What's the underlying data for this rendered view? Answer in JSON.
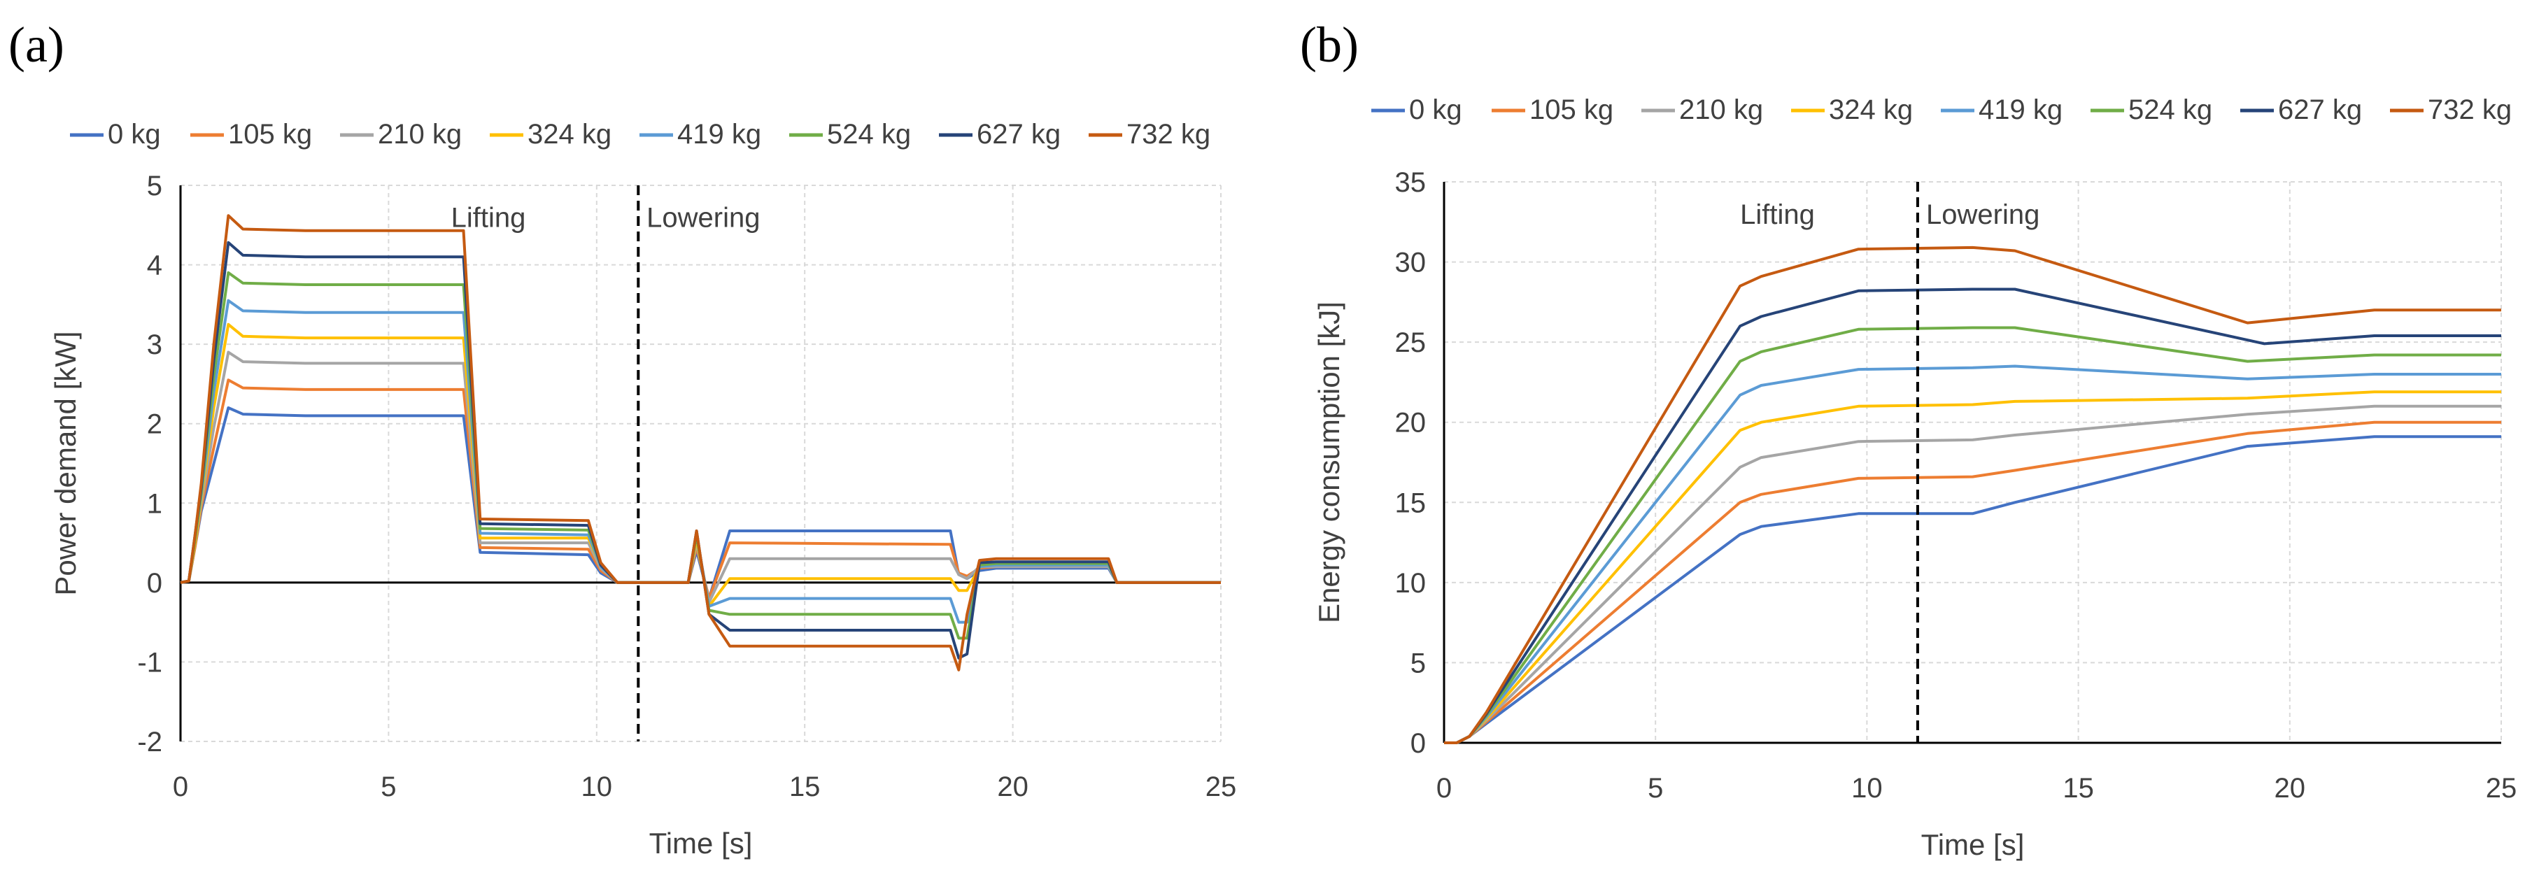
{
  "figure": {
    "panels": [
      {
        "label": "(a)"
      },
      {
        "label": "(b)"
      }
    ]
  },
  "chart_data": [
    {
      "type": "line",
      "title": "",
      "xlabel": "Time [s]",
      "ylabel": "Power demand [kW]",
      "xlim": [
        0,
        25
      ],
      "ylim": [
        -2,
        5
      ],
      "xticks": [
        0,
        5,
        10,
        15,
        20,
        25
      ],
      "yticks": [
        -2,
        -1,
        0,
        1,
        2,
        3,
        4,
        5
      ],
      "grid": true,
      "legend": "top",
      "divider": {
        "x": 11,
        "style": "dashed"
      },
      "annotations": [
        {
          "text": "Lifting",
          "x": 6.5,
          "y": 4.6
        },
        {
          "text": "Lowering",
          "x": 11.2,
          "y": 4.6
        }
      ],
      "colors": [
        "#4472C4",
        "#ED7D31",
        "#A5A5A5",
        "#FFC000",
        "#5B9BD5",
        "#70AD47",
        "#264478",
        "#C55A11"
      ],
      "series": [
        {
          "name": "0 kg",
          "x": [
            0,
            0.2,
            0.35,
            0.5,
            0.8,
            1.15,
            1.5,
            3,
            5,
            6.8,
            7.2,
            9.8,
            10.1,
            10.5,
            11,
            12.2,
            12.4,
            12.7,
            13.2,
            18.5,
            18.7,
            18.9,
            19.2,
            19.6,
            21.5,
            22.3,
            22.5,
            25
          ],
          "y": [
            0,
            0.02,
            0.45,
            0.9,
            1.5,
            2.2,
            2.12,
            2.1,
            2.1,
            2.1,
            0.38,
            0.35,
            0.12,
            0,
            0,
            0,
            0.4,
            -0.2,
            0.65,
            0.65,
            0.1,
            0.05,
            0.15,
            0.18,
            0.18,
            0.18,
            0,
            0
          ]
        },
        {
          "name": "105 kg",
          "x": [
            0,
            0.2,
            0.35,
            0.5,
            0.8,
            1.15,
            1.5,
            3,
            5,
            6.8,
            7.2,
            9.8,
            10.1,
            10.5,
            11,
            12.2,
            12.4,
            12.7,
            13.2,
            18.5,
            18.7,
            18.9,
            19.2,
            19.6,
            21.5,
            22.3,
            22.5,
            25
          ],
          "y": [
            0,
            0.02,
            0.45,
            0.95,
            1.7,
            2.55,
            2.45,
            2.43,
            2.43,
            2.43,
            0.44,
            0.42,
            0.15,
            0,
            0,
            0,
            0.45,
            -0.2,
            0.5,
            0.48,
            0.12,
            0.08,
            0.18,
            0.2,
            0.2,
            0.2,
            0,
            0
          ]
        },
        {
          "name": "210 kg",
          "x": [
            0,
            0.2,
            0.35,
            0.5,
            0.8,
            1.15,
            1.5,
            3,
            5,
            6.8,
            7.2,
            9.8,
            10.1,
            10.5,
            11,
            12.2,
            12.4,
            12.7,
            13.2,
            18.5,
            18.7,
            18.9,
            19.2,
            19.6,
            21.5,
            22.3,
            22.5,
            25
          ],
          "y": [
            0,
            0.02,
            0.5,
            1.0,
            1.95,
            2.9,
            2.78,
            2.76,
            2.76,
            2.76,
            0.5,
            0.5,
            0.18,
            0,
            0,
            0,
            0.5,
            -0.25,
            0.3,
            0.3,
            0.1,
            0.05,
            0.2,
            0.2,
            0.2,
            0.2,
            0,
            0
          ]
        },
        {
          "name": "324 kg",
          "x": [
            0,
            0.2,
            0.35,
            0.5,
            0.8,
            1.15,
            1.5,
            3,
            5,
            6.8,
            7.2,
            9.8,
            10.1,
            10.5,
            11,
            12.2,
            12.4,
            12.7,
            13.2,
            18.5,
            18.7,
            18.9,
            19.2,
            19.6,
            21.5,
            22.3,
            22.5,
            25
          ],
          "y": [
            0,
            0.02,
            0.5,
            1.05,
            2.2,
            3.25,
            3.1,
            3.08,
            3.08,
            3.08,
            0.56,
            0.56,
            0.2,
            0,
            0,
            0,
            0.55,
            -0.3,
            0.05,
            0.05,
            -0.1,
            -0.1,
            0.2,
            0.22,
            0.22,
            0.22,
            0,
            0
          ]
        },
        {
          "name": "419 kg",
          "x": [
            0,
            0.2,
            0.35,
            0.5,
            0.8,
            1.15,
            1.5,
            3,
            5,
            6.8,
            7.2,
            9.8,
            10.1,
            10.5,
            11,
            12.2,
            12.4,
            12.7,
            13.2,
            18.5,
            18.7,
            18.9,
            19.2,
            19.6,
            21.5,
            22.3,
            22.5,
            25
          ],
          "y": [
            0,
            0.02,
            0.55,
            1.1,
            2.4,
            3.55,
            3.42,
            3.4,
            3.4,
            3.4,
            0.62,
            0.6,
            0.2,
            0,
            0,
            0,
            0.6,
            -0.3,
            -0.2,
            -0.2,
            -0.5,
            -0.5,
            0.2,
            0.22,
            0.22,
            0.22,
            0,
            0
          ]
        },
        {
          "name": "524 kg",
          "x": [
            0,
            0.2,
            0.35,
            0.5,
            0.8,
            1.15,
            1.5,
            3,
            5,
            6.8,
            7.2,
            9.8,
            10.1,
            10.5,
            11,
            12.2,
            12.4,
            12.7,
            13.2,
            18.5,
            18.7,
            18.9,
            19.2,
            19.6,
            21.5,
            22.3,
            22.5,
            25
          ],
          "y": [
            0,
            0.02,
            0.55,
            1.15,
            2.6,
            3.9,
            3.77,
            3.75,
            3.75,
            3.75,
            0.68,
            0.66,
            0.22,
            0,
            0,
            0,
            0.6,
            -0.35,
            -0.4,
            -0.4,
            -0.7,
            -0.7,
            0.22,
            0.24,
            0.24,
            0.24,
            0,
            0
          ]
        },
        {
          "name": "627 kg",
          "x": [
            0,
            0.2,
            0.35,
            0.5,
            0.8,
            1.15,
            1.5,
            3,
            5,
            6.8,
            7.2,
            9.8,
            10.1,
            10.5,
            11,
            12.2,
            12.4,
            12.7,
            13.2,
            18.5,
            18.7,
            18.9,
            19.2,
            19.6,
            21.5,
            22.3,
            22.5,
            25
          ],
          "y": [
            0,
            0.02,
            0.6,
            1.2,
            2.8,
            4.28,
            4.12,
            4.1,
            4.1,
            4.1,
            0.74,
            0.72,
            0.22,
            0,
            0,
            0,
            0.65,
            -0.4,
            -0.6,
            -0.6,
            -0.95,
            -0.9,
            0.25,
            0.26,
            0.26,
            0.26,
            0,
            0
          ]
        },
        {
          "name": "732 kg",
          "x": [
            0,
            0.2,
            0.35,
            0.5,
            0.8,
            1.15,
            1.5,
            3,
            5,
            6.8,
            7.2,
            9.8,
            10.1,
            10.5,
            11,
            12.2,
            12.4,
            12.7,
            13.2,
            18.5,
            18.7,
            18.9,
            19.2,
            19.6,
            21.5,
            22.3,
            22.5,
            25
          ],
          "y": [
            0,
            0.02,
            0.6,
            1.25,
            3.0,
            4.62,
            4.45,
            4.43,
            4.43,
            4.43,
            0.8,
            0.78,
            0.25,
            0,
            0,
            0,
            0.65,
            -0.4,
            -0.8,
            -0.8,
            -1.1,
            -0.4,
            0.28,
            0.3,
            0.3,
            0.3,
            0,
            0
          ]
        }
      ]
    },
    {
      "type": "line",
      "title": "",
      "xlabel": "Time [s]",
      "ylabel": "Energy consumption [kJ]",
      "xlim": [
        0,
        25
      ],
      "ylim": [
        0,
        35
      ],
      "xticks": [
        0,
        5,
        10,
        15,
        20,
        25
      ],
      "yticks": [
        0,
        5,
        10,
        15,
        20,
        25,
        30,
        35
      ],
      "grid": true,
      "legend": "top",
      "divider": {
        "x": 11.2,
        "style": "dashed"
      },
      "annotations": [
        {
          "text": "Lifting",
          "x": 7.0,
          "y": 33
        },
        {
          "text": "Lowering",
          "x": 11.4,
          "y": 33
        }
      ],
      "colors": [
        "#4472C4",
        "#ED7D31",
        "#A5A5A5",
        "#FFC000",
        "#5B9BD5",
        "#70AD47",
        "#264478",
        "#C55A11"
      ],
      "series": [
        {
          "name": "0 kg",
          "x": [
            0,
            0.3,
            0.6,
            1.0,
            7.0,
            7.5,
            9.8,
            12.5,
            13.5,
            19.0,
            22.0,
            25
          ],
          "y": [
            0,
            0,
            0.4,
            1.2,
            13.0,
            13.5,
            14.3,
            14.3,
            15.0,
            18.5,
            19.1,
            19.1
          ]
        },
        {
          "name": "105 kg",
          "x": [
            0,
            0.3,
            0.6,
            1.0,
            7.0,
            7.5,
            9.8,
            12.5,
            13.5,
            19.0,
            22.0,
            25
          ],
          "y": [
            0,
            0,
            0.4,
            1.3,
            15.0,
            15.5,
            16.5,
            16.6,
            17.0,
            19.3,
            20.0,
            20.0
          ]
        },
        {
          "name": "210 kg",
          "x": [
            0,
            0.3,
            0.6,
            1.0,
            7.0,
            7.5,
            9.8,
            12.5,
            13.5,
            19.0,
            22.0,
            25
          ],
          "y": [
            0,
            0,
            0.4,
            1.4,
            17.2,
            17.8,
            18.8,
            18.9,
            19.2,
            20.5,
            21.0,
            21.0
          ]
        },
        {
          "name": "324 kg",
          "x": [
            0,
            0.3,
            0.6,
            1.0,
            7.0,
            7.5,
            9.8,
            12.5,
            13.5,
            19.0,
            22.0,
            25
          ],
          "y": [
            0,
            0,
            0.4,
            1.5,
            19.5,
            20.0,
            21.0,
            21.1,
            21.3,
            21.5,
            21.9,
            21.9
          ]
        },
        {
          "name": "419 kg",
          "x": [
            0,
            0.3,
            0.6,
            1.0,
            7.0,
            7.5,
            9.8,
            12.5,
            13.5,
            19.0,
            22.0,
            25
          ],
          "y": [
            0,
            0,
            0.4,
            1.6,
            21.7,
            22.3,
            23.3,
            23.4,
            23.5,
            22.7,
            23.0,
            23.0
          ]
        },
        {
          "name": "524 kg",
          "x": [
            0,
            0.3,
            0.6,
            1.0,
            7.0,
            7.5,
            9.8,
            12.5,
            13.5,
            19.0,
            22.0,
            25
          ],
          "y": [
            0,
            0,
            0.4,
            1.7,
            23.8,
            24.4,
            25.8,
            25.9,
            25.9,
            23.8,
            24.2,
            24.2
          ]
        },
        {
          "name": "627 kg",
          "x": [
            0,
            0.3,
            0.6,
            1.0,
            7.0,
            7.5,
            9.8,
            12.5,
            13.5,
            19.4,
            22.0,
            25
          ],
          "y": [
            0,
            0,
            0.4,
            1.8,
            26.0,
            26.6,
            28.2,
            28.3,
            28.3,
            24.9,
            25.4,
            25.4
          ]
        },
        {
          "name": "732 kg",
          "x": [
            0,
            0.3,
            0.6,
            1.0,
            7.0,
            7.5,
            9.8,
            12.5,
            13.5,
            19.0,
            22.0,
            25
          ],
          "y": [
            0,
            0,
            0.4,
            1.9,
            28.5,
            29.1,
            30.8,
            30.9,
            30.7,
            26.2,
            27.0,
            27.0
          ]
        }
      ]
    }
  ]
}
